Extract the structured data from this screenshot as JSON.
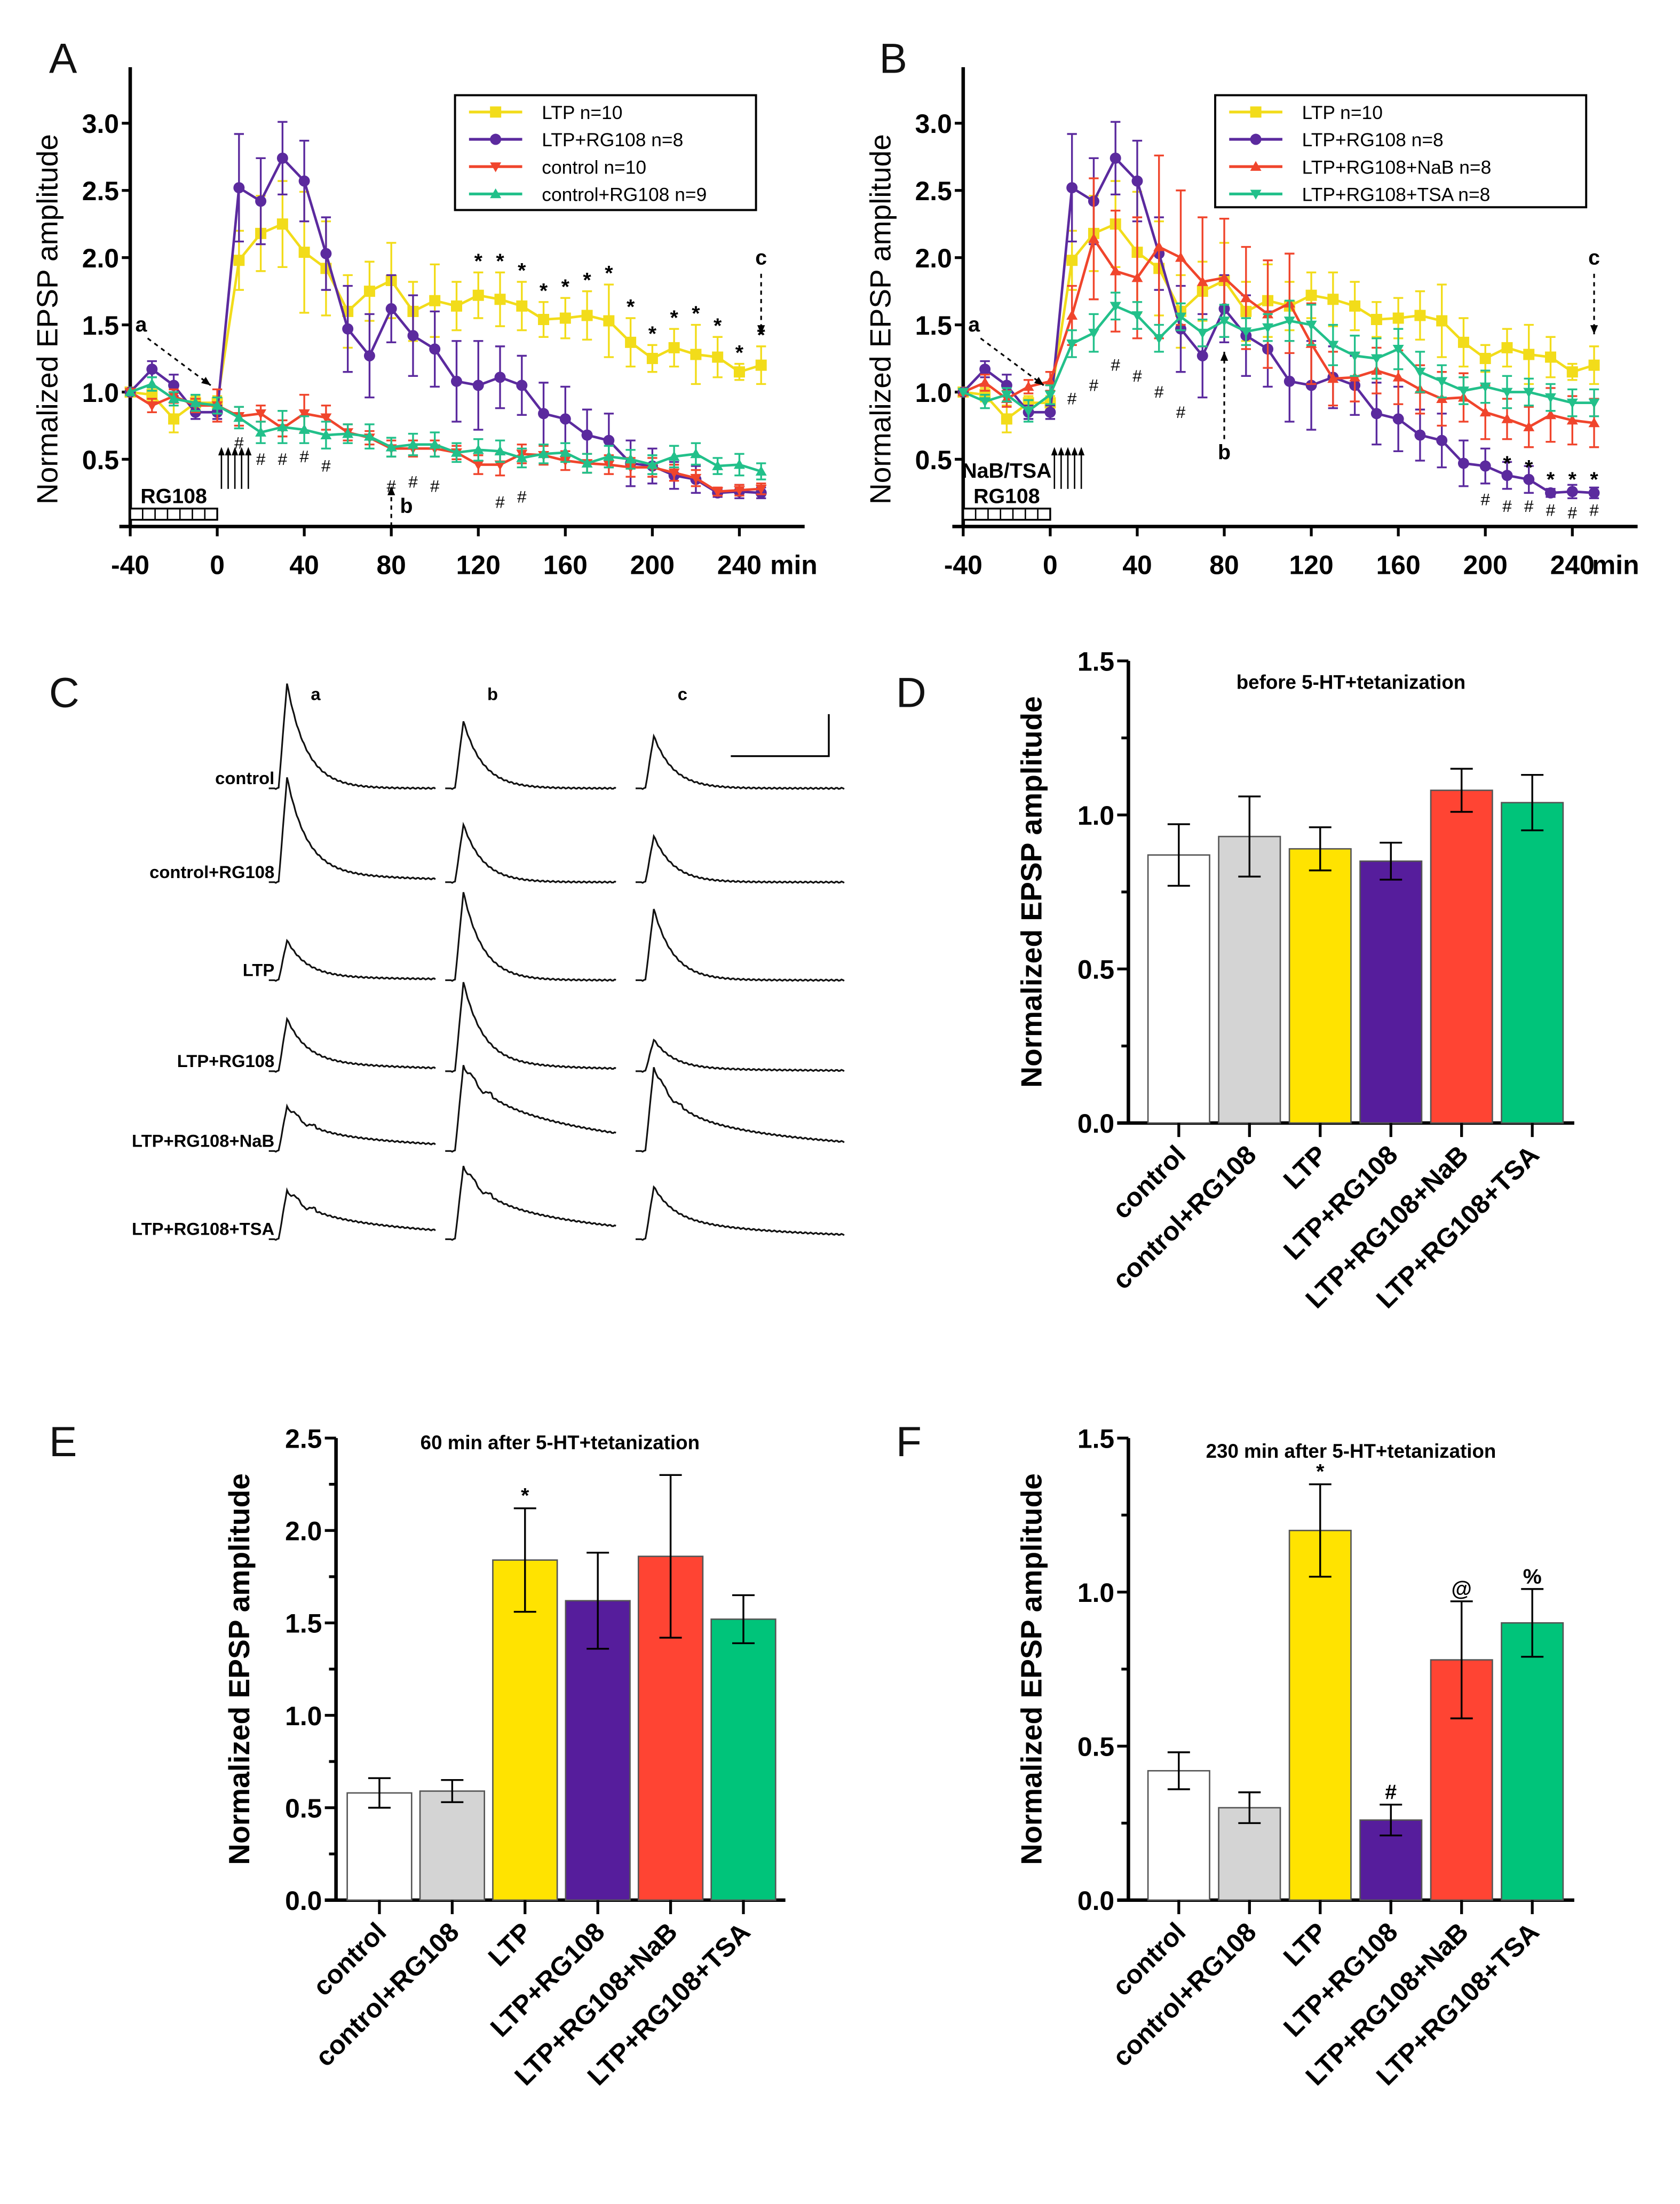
{
  "panels": {
    "A": "A",
    "B": "B",
    "C": "C",
    "D": "D",
    "E": "E",
    "F": "F"
  },
  "colors": {
    "LTP": "#f2dc1a",
    "LTP+RG108": "#5b2a9e",
    "control": "#f0452c",
    "control+RG108": "#22c08a",
    "LTP+RG108+NaB": "#f0452c",
    "LTP+RG108+TSA": "#22c08a"
  },
  "chart_data": [
    {
      "id": "A",
      "type": "line",
      "ylabel": "Normalized EPSP amplitude",
      "xunit": "min",
      "xticks": [
        -40,
        0,
        40,
        80,
        120,
        160,
        200,
        240
      ],
      "yticks": [
        0.5,
        1.0,
        1.5,
        2.0,
        2.5,
        3.0
      ],
      "x": [
        -40,
        -30,
        -20,
        -10,
        0,
        10,
        20,
        30,
        40,
        50,
        60,
        70,
        80,
        90,
        100,
        110,
        120,
        130,
        140,
        150,
        160,
        170,
        180,
        190,
        200,
        210,
        220,
        230,
        240,
        250
      ],
      "legend_position": "top-right",
      "series": [
        {
          "name": "LTP n=10",
          "key": "LTP",
          "marker": "square",
          "values": [
            1.0,
            0.98,
            0.8,
            0.92,
            0.92,
            1.98,
            2.18,
            2.25,
            2.04,
            1.92,
            1.6,
            1.75,
            1.83,
            1.6,
            1.68,
            1.64,
            1.72,
            1.69,
            1.64,
            1.54,
            1.55,
            1.57,
            1.53,
            1.37,
            1.25,
            1.33,
            1.28,
            1.26,
            1.15,
            1.2
          ],
          "sem": [
            0,
            0.05,
            0.1,
            0.05,
            0.05,
            0.22,
            0.28,
            0.32,
            0.45,
            0.35,
            0.27,
            0.22,
            0.28,
            0.22,
            0.27,
            0.18,
            0.17,
            0.2,
            0.18,
            0.13,
            0.15,
            0.18,
            0.27,
            0.18,
            0.1,
            0.14,
            0.22,
            0.15,
            0.06,
            0.14
          ]
        },
        {
          "name": "LTP+RG108 n=8",
          "key": "LTP+RG108",
          "marker": "circle",
          "values": [
            1.0,
            1.17,
            1.05,
            0.85,
            0.85,
            2.52,
            2.42,
            2.74,
            2.57,
            2.03,
            1.47,
            1.27,
            1.62,
            1.42,
            1.32,
            1.08,
            1.05,
            1.11,
            1.05,
            0.84,
            0.8,
            0.68,
            0.64,
            0.47,
            0.45,
            0.38,
            0.35,
            0.25,
            0.26,
            0.25
          ],
          "sem": [
            0,
            0.06,
            0.08,
            0.05,
            0.05,
            0.4,
            0.32,
            0.27,
            0.3,
            0.27,
            0.32,
            0.31,
            0.25,
            0.3,
            0.28,
            0.3,
            0.33,
            0.23,
            0.22,
            0.23,
            0.24,
            0.19,
            0.2,
            0.17,
            0.13,
            0.1,
            0.1,
            0.03,
            0.05,
            0.04
          ]
        },
        {
          "name": "control n=10",
          "key": "control",
          "marker": "triangle-down",
          "values": [
            1.0,
            0.9,
            0.97,
            0.9,
            0.9,
            0.82,
            0.84,
            0.73,
            0.84,
            0.81,
            0.7,
            0.66,
            0.58,
            0.58,
            0.58,
            0.55,
            0.46,
            0.46,
            0.54,
            0.53,
            0.49,
            0.47,
            0.46,
            0.44,
            0.44,
            0.4,
            0.36,
            0.26,
            0.27,
            0.28
          ],
          "sem": [
            0,
            0.05,
            0.05,
            0.05,
            0.12,
            0.07,
            0.06,
            0.06,
            0.14,
            0.09,
            0.06,
            0.05,
            0.06,
            0.06,
            0.06,
            0.05,
            0.07,
            0.08,
            0.07,
            0.07,
            0.07,
            0.07,
            0.07,
            0.07,
            0.07,
            0.06,
            0.06,
            0.03,
            0.04,
            0.04
          ]
        },
        {
          "name": "control+RG108 n=9",
          "key": "control+RG108",
          "marker": "triangle-up",
          "values": [
            1.0,
            1.06,
            0.95,
            0.92,
            0.9,
            0.81,
            0.7,
            0.74,
            0.72,
            0.68,
            0.69,
            0.67,
            0.59,
            0.61,
            0.61,
            0.55,
            0.57,
            0.56,
            0.51,
            0.54,
            0.55,
            0.47,
            0.52,
            0.5,
            0.46,
            0.52,
            0.54,
            0.45,
            0.46,
            0.41
          ],
          "sem": [
            0,
            0.05,
            0.05,
            0.06,
            0.06,
            0.08,
            0.08,
            0.12,
            0.1,
            0.1,
            0.07,
            0.09,
            0.07,
            0.08,
            0.09,
            0.07,
            0.08,
            0.08,
            0.07,
            0.07,
            0.07,
            0.07,
            0.08,
            0.07,
            0.07,
            0.08,
            0.08,
            0.06,
            0.08,
            0.06
          ]
        }
      ],
      "significance": {
        "asterisk_x": [
          120,
          130,
          140,
          150,
          160,
          170,
          180,
          190,
          200,
          210,
          220,
          230,
          240,
          250
        ],
        "hash": [
          [
            10,
            0.62
          ],
          [
            20,
            0.5
          ],
          [
            30,
            0.5
          ],
          [
            40,
            0.52
          ],
          [
            50,
            0.45
          ],
          [
            80,
            0.3
          ],
          [
            90,
            0.33
          ],
          [
            100,
            0.3
          ],
          [
            130,
            0.18
          ],
          [
            140,
            0.22
          ]
        ]
      },
      "markers": {
        "a": "a",
        "b": "b",
        "c": "c",
        "drug_bar": "RG108"
      }
    },
    {
      "id": "B",
      "type": "line",
      "ylabel": "Normalized EPSP amplitude",
      "xunit": "min",
      "xticks": [
        -40,
        0,
        40,
        80,
        120,
        160,
        200,
        240
      ],
      "yticks": [
        0.5,
        1.0,
        1.5,
        2.0,
        2.5,
        3.0
      ],
      "x": [
        -40,
        -30,
        -20,
        -10,
        0,
        10,
        20,
        30,
        40,
        50,
        60,
        70,
        80,
        90,
        100,
        110,
        120,
        130,
        140,
        150,
        160,
        170,
        180,
        190,
        200,
        210,
        220,
        230,
        240,
        250
      ],
      "legend_position": "top-right",
      "series": [
        {
          "name": "LTP n=10",
          "key": "LTP",
          "marker": "square",
          "values": [
            1.0,
            0.98,
            0.8,
            0.92,
            0.92,
            1.98,
            2.18,
            2.25,
            2.04,
            1.92,
            1.6,
            1.75,
            1.83,
            1.6,
            1.68,
            1.64,
            1.72,
            1.69,
            1.64,
            1.54,
            1.55,
            1.57,
            1.53,
            1.37,
            1.25,
            1.33,
            1.28,
            1.26,
            1.15,
            1.2
          ],
          "sem": [
            0,
            0.05,
            0.1,
            0.05,
            0.05,
            0.22,
            0.28,
            0.32,
            0.45,
            0.35,
            0.27,
            0.22,
            0.28,
            0.22,
            0.27,
            0.18,
            0.17,
            0.2,
            0.18,
            0.13,
            0.15,
            0.18,
            0.27,
            0.18,
            0.1,
            0.14,
            0.22,
            0.15,
            0.06,
            0.14
          ]
        },
        {
          "name": "LTP+RG108 n=8",
          "key": "LTP+RG108",
          "marker": "circle",
          "values": [
            1.0,
            1.17,
            1.05,
            0.85,
            0.85,
            2.52,
            2.42,
            2.74,
            2.57,
            2.03,
            1.47,
            1.27,
            1.62,
            1.42,
            1.32,
            1.08,
            1.05,
            1.11,
            1.05,
            0.84,
            0.8,
            0.68,
            0.64,
            0.47,
            0.45,
            0.38,
            0.35,
            0.25,
            0.26,
            0.25
          ],
          "sem": [
            0,
            0.06,
            0.08,
            0.05,
            0.05,
            0.4,
            0.32,
            0.27,
            0.3,
            0.27,
            0.32,
            0.31,
            0.25,
            0.3,
            0.28,
            0.3,
            0.33,
            0.23,
            0.22,
            0.23,
            0.24,
            0.19,
            0.2,
            0.17,
            0.13,
            0.1,
            0.1,
            0.03,
            0.05,
            0.04
          ]
        },
        {
          "name": "LTP+RG108+NaB n=8",
          "key": "LTP+RG108+NaB",
          "marker": "triangle-up",
          "values": [
            1.0,
            1.07,
            0.95,
            1.04,
            1.08,
            1.57,
            2.14,
            1.9,
            1.85,
            2.08,
            2.0,
            1.82,
            1.85,
            1.7,
            1.58,
            1.66,
            1.36,
            1.1,
            1.11,
            1.16,
            1.11,
            1.02,
            0.95,
            0.96,
            0.85,
            0.8,
            0.74,
            0.83,
            0.79,
            0.77
          ],
          "sem": [
            0,
            0.06,
            0.06,
            0.05,
            0.07,
            0.22,
            0.45,
            0.45,
            0.45,
            0.68,
            0.5,
            0.48,
            0.44,
            0.38,
            0.4,
            0.37,
            0.3,
            0.2,
            0.18,
            0.17,
            0.2,
            0.18,
            0.2,
            0.18,
            0.2,
            0.15,
            0.15,
            0.2,
            0.18,
            0.18
          ]
        },
        {
          "name": "LTP+RG108+TSA n=8",
          "key": "LTP+RG108+TSA",
          "marker": "triangle-down",
          "values": [
            1.0,
            0.93,
            0.98,
            0.86,
            0.98,
            1.36,
            1.44,
            1.64,
            1.57,
            1.4,
            1.56,
            1.44,
            1.53,
            1.45,
            1.48,
            1.53,
            1.5,
            1.35,
            1.27,
            1.25,
            1.32,
            1.15,
            1.08,
            1.01,
            1.04,
            1.0,
            1.0,
            0.96,
            0.92,
            0.92
          ],
          "sem": [
            0,
            0.05,
            0.05,
            0.08,
            0.07,
            0.1,
            0.14,
            0.1,
            0.1,
            0.1,
            0.1,
            0.1,
            0.12,
            0.1,
            0.1,
            0.15,
            0.15,
            0.15,
            0.15,
            0.15,
            0.15,
            0.15,
            0.12,
            0.1,
            0.12,
            0.12,
            0.1,
            0.1,
            0.1,
            0.1
          ]
        }
      ],
      "significance": {
        "asterisks": [
          [
            210,
            0.5
          ],
          [
            220,
            0.47
          ],
          [
            230,
            0.38
          ],
          [
            240,
            0.38
          ],
          [
            250,
            0.38
          ]
        ],
        "hash": [
          [
            10,
            0.95
          ],
          [
            20,
            1.05
          ],
          [
            30,
            1.2
          ],
          [
            40,
            1.12
          ],
          [
            50,
            1.0
          ],
          [
            60,
            0.85
          ],
          [
            200,
            0.2
          ],
          [
            210,
            0.15
          ],
          [
            220,
            0.15
          ],
          [
            230,
            0.12
          ],
          [
            240,
            0.1
          ],
          [
            250,
            0.12
          ]
        ]
      },
      "markers": {
        "a": "a",
        "b": "b",
        "c": "c",
        "drug_bar": "RG108",
        "drug_bar_2": "NaB/TSA"
      }
    },
    {
      "id": "D",
      "type": "bar",
      "title": "before 5-HT+tetanization",
      "ylabel": "Normalized EPSP amplitude",
      "ylim": [
        0,
        1.5
      ],
      "yticks": [
        0.0,
        0.5,
        1.0,
        1.5
      ],
      "categories": [
        "control",
        "control+RG108",
        "LTP",
        "LTP+RG108",
        "LTP+RG108+NaB",
        "LTP+RG108+TSA"
      ],
      "values": [
        0.87,
        0.93,
        0.89,
        0.85,
        1.08,
        1.04
      ],
      "sem": [
        0.1,
        0.13,
        0.07,
        0.06,
        0.07,
        0.09
      ],
      "marks": [
        "",
        "",
        "",
        "",
        "",
        ""
      ],
      "bar_colors": [
        "#ffffff",
        "#d4d4d4",
        "#ffe300",
        "#561d9c",
        "#ff4433",
        "#00c47a"
      ]
    },
    {
      "id": "E",
      "type": "bar",
      "title": "60 min after 5-HT+tetanization",
      "ylabel": "Normalized EPSP amplitude",
      "ylim": [
        0,
        2.5
      ],
      "yticks": [
        0.0,
        0.5,
        1.0,
        1.5,
        2.0,
        2.5
      ],
      "categories": [
        "control",
        "control+RG108",
        "LTP",
        "LTP+RG108",
        "LTP+RG108+NaB",
        "LTP+RG108+TSA"
      ],
      "values": [
        0.58,
        0.59,
        1.84,
        1.62,
        1.86,
        1.52
      ],
      "sem": [
        0.08,
        0.06,
        0.28,
        0.26,
        0.44,
        0.13
      ],
      "marks": [
        "",
        "",
        "*",
        "",
        "",
        ""
      ],
      "bar_colors": [
        "#ffffff",
        "#d4d4d4",
        "#ffe300",
        "#561d9c",
        "#ff4433",
        "#00c47a"
      ]
    },
    {
      "id": "F",
      "type": "bar",
      "title": "230 min after 5-HT+tetanization",
      "ylabel": "Normalized EPSP amplitude",
      "ylim": [
        0,
        1.5
      ],
      "yticks": [
        0.0,
        0.5,
        1.0,
        1.5
      ],
      "categories": [
        "control",
        "control+RG108",
        "LTP",
        "LTP+RG108",
        "LTP+RG108+NaB",
        "LTP+RG108+TSA"
      ],
      "values": [
        0.42,
        0.3,
        1.2,
        0.26,
        0.78,
        0.9
      ],
      "sem": [
        0.06,
        0.05,
        0.15,
        0.05,
        0.19,
        0.11
      ],
      "marks": [
        "",
        "",
        "*",
        "#",
        "@",
        "%"
      ],
      "bar_colors": [
        "#ffffff",
        "#d4d4d4",
        "#ffe300",
        "#561d9c",
        "#ff4433",
        "#00c47a"
      ]
    }
  ],
  "traces": {
    "columns": [
      "a",
      "b",
      "c"
    ],
    "rows": [
      {
        "label": "control",
        "relative_amplitude": [
          1.0,
          0.64,
          0.5
        ],
        "plateau": [
          0,
          0,
          0
        ]
      },
      {
        "label": "control+RG108",
        "relative_amplitude": [
          1.0,
          0.55,
          0.44
        ],
        "plateau": [
          0.1,
          0,
          0
        ]
      },
      {
        "label": "LTP",
        "relative_amplitude": [
          0.38,
          0.84,
          0.68
        ],
        "plateau": [
          0.1,
          0,
          0
        ]
      },
      {
        "label": "LTP+RG108",
        "relative_amplitude": [
          0.5,
          0.85,
          0.3
        ],
        "plateau": [
          0.2,
          0.1,
          0.1
        ]
      },
      {
        "label": "LTP+RG108+NaB",
        "relative_amplitude": [
          0.43,
          0.82,
          0.8
        ],
        "plateau": [
          0.5,
          0.7,
          0.5
        ]
      },
      {
        "label": "LTP+RG108+TSA",
        "relative_amplitude": [
          0.47,
          0.7,
          0.5
        ],
        "plateau": [
          0.6,
          0.6,
          0.4
        ]
      }
    ]
  }
}
